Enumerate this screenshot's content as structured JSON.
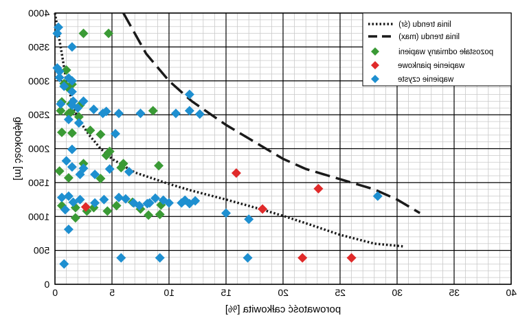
{
  "chart_data": {
    "type": "scatter",
    "xlabel": "porowatość całkowita [%]",
    "ylabel": "głębokość [m]",
    "xlim": [
      0,
      40
    ],
    "ylim": [
      0,
      4000
    ],
    "x_ticks": [
      0,
      5,
      10,
      15,
      20,
      25,
      30,
      35,
      40
    ],
    "y_ticks": [
      0,
      500,
      1000,
      1500,
      2000,
      2500,
      3000,
      3500,
      4000
    ],
    "x_tick_labels": [
      "0",
      "5",
      "10",
      "15",
      "20",
      "25",
      "30",
      "35",
      "40"
    ],
    "y_tick_labels": [
      "0",
      "500",
      "1000",
      "1500",
      "2000",
      "2500",
      "3000",
      "3500",
      "4000"
    ],
    "grid": true,
    "mirrored_horizontally": true,
    "legend_position": "top-right",
    "legend": [
      {
        "label": "linia trendu (śr)",
        "marker": "dotted-line"
      },
      {
        "label": "linia trendu (max)",
        "marker": "dashed-line"
      },
      {
        "label": "pozostałe odmiany wapieni",
        "marker": "diamond",
        "color": "#3a9a35"
      },
      {
        "label": "wapienie piankowe",
        "marker": "diamond",
        "color": "#e02a2a"
      },
      {
        "label": "wapienie czyste",
        "marker": "diamond",
        "color": "#1e8fd0"
      }
    ],
    "series": [
      {
        "name": "linia trendu (śr)",
        "style": "dotted",
        "color": "#1a1a1a",
        "points": [
          [
            0,
            4000
          ],
          [
            0.5,
            3500
          ],
          [
            1,
            3000
          ],
          [
            1.5,
            2700
          ],
          [
            2,
            2450
          ],
          [
            3,
            2200
          ],
          [
            4,
            2000
          ],
          [
            5,
            1850
          ],
          [
            7,
            1650
          ],
          [
            10,
            1480
          ],
          [
            12,
            1380
          ],
          [
            15,
            1250
          ],
          [
            18,
            1110
          ],
          [
            20,
            1010
          ],
          [
            22,
            900
          ],
          [
            25,
            730
          ],
          [
            28,
            600
          ],
          [
            30.5,
            560
          ]
        ]
      },
      {
        "name": "linia trendu (max)",
        "style": "dashed",
        "color": "#1a1a1a",
        "points": [
          [
            6,
            4000
          ],
          [
            7,
            3700
          ],
          [
            8,
            3400
          ],
          [
            10,
            3000
          ],
          [
            12,
            2700
          ],
          [
            15,
            2350
          ],
          [
            18,
            2050
          ],
          [
            20,
            1850
          ],
          [
            22,
            1700
          ],
          [
            24,
            1600
          ],
          [
            26,
            1500
          ],
          [
            28,
            1400
          ],
          [
            30,
            1250
          ],
          [
            32,
            1050
          ]
        ]
      },
      {
        "name": "pozostałe odmiany wapieni",
        "color": "#3a9a35",
        "points": [
          [
            2.5,
            3700
          ],
          [
            4.7,
            3700
          ],
          [
            1.0,
            3160
          ],
          [
            0.8,
            2960
          ],
          [
            1.5,
            2950
          ],
          [
            1.2,
            2890
          ],
          [
            0.6,
            2690
          ],
          [
            1.4,
            2660
          ],
          [
            2.2,
            2640
          ],
          [
            0.5,
            2560
          ],
          [
            1.4,
            2540
          ],
          [
            1.2,
            2520
          ],
          [
            2.1,
            2470
          ],
          [
            3.1,
            2270
          ],
          [
            0.6,
            2240
          ],
          [
            1.5,
            2230
          ],
          [
            4.0,
            2210
          ],
          [
            8.6,
            2560
          ],
          [
            4.8,
            1960
          ],
          [
            4.5,
            1900
          ],
          [
            2.5,
            1780
          ],
          [
            0.4,
            1670
          ],
          [
            6.0,
            1780
          ],
          [
            5.8,
            1720
          ],
          [
            9.1,
            1750
          ],
          [
            1.2,
            1570
          ],
          [
            4.0,
            1560
          ],
          [
            0.6,
            1160
          ],
          [
            1.8,
            1130
          ],
          [
            3.4,
            1130
          ],
          [
            5.4,
            1160
          ],
          [
            6.8,
            1210
          ],
          [
            9.3,
            1170
          ],
          [
            7.5,
            1110
          ],
          [
            2.8,
            1080
          ],
          [
            4.6,
            1080
          ],
          [
            8.2,
            1020
          ],
          [
            9.2,
            1030
          ],
          [
            1.8,
            980
          ]
        ]
      },
      {
        "name": "wapienie piankowe",
        "color": "#e02a2a",
        "points": [
          [
            2.7,
            1140
          ],
          [
            15.9,
            1640
          ],
          [
            18.2,
            1110
          ],
          [
            23.1,
            1410
          ],
          [
            21.7,
            390
          ],
          [
            26.0,
            390
          ]
        ]
      },
      {
        "name": "wapienie czyste",
        "color": "#1e8fd0",
        "points": [
          [
            0.3,
            3790
          ],
          [
            0.2,
            3700
          ],
          [
            1.5,
            3500
          ],
          [
            0.2,
            3190
          ],
          [
            0.4,
            3140
          ],
          [
            0.4,
            3050
          ],
          [
            1.2,
            3040
          ],
          [
            1.5,
            3000
          ],
          [
            0.8,
            2920
          ],
          [
            1.5,
            2840
          ],
          [
            1.6,
            2700
          ],
          [
            2.5,
            2700
          ],
          [
            0.5,
            2660
          ],
          [
            1.5,
            2640
          ],
          [
            2.0,
            2600
          ],
          [
            3.4,
            2580
          ],
          [
            4.2,
            2520
          ],
          [
            4.5,
            2550
          ],
          [
            5.6,
            2520
          ],
          [
            7.5,
            2520
          ],
          [
            10.6,
            2520
          ],
          [
            11.8,
            2560
          ],
          [
            12.7,
            2510
          ],
          [
            11.8,
            2800
          ],
          [
            1.2,
            2430
          ],
          [
            2.1,
            2380
          ],
          [
            5.3,
            2220
          ],
          [
            1.5,
            1990
          ],
          [
            1.0,
            1820
          ],
          [
            1.5,
            1730
          ],
          [
            2.5,
            1710
          ],
          [
            4.8,
            1700
          ],
          [
            2.2,
            1620
          ],
          [
            3.5,
            1620
          ],
          [
            6.5,
            1660
          ],
          [
            0.6,
            1280
          ],
          [
            1.2,
            1300
          ],
          [
            2.2,
            1250
          ],
          [
            4.3,
            1250
          ],
          [
            5.6,
            1280
          ],
          [
            6.2,
            1260
          ],
          [
            6.9,
            1200
          ],
          [
            8.3,
            1200
          ],
          [
            8.8,
            1270
          ],
          [
            9.5,
            1240
          ],
          [
            10.0,
            1200
          ],
          [
            11.4,
            1240
          ],
          [
            12.3,
            1230
          ],
          [
            0.9,
            1100
          ],
          [
            1.6,
            1210
          ],
          [
            3.5,
            1200
          ],
          [
            7.4,
            1160
          ],
          [
            8.1,
            1190
          ],
          [
            11.1,
            1200
          ],
          [
            11.8,
            1190
          ],
          [
            15.0,
            1050
          ],
          [
            17.0,
            960
          ],
          [
            1.2,
            810
          ],
          [
            28.3,
            1300
          ],
          [
            5.8,
            390
          ],
          [
            9.2,
            390
          ],
          [
            16.9,
            390
          ],
          [
            0.8,
            300
          ]
        ]
      }
    ]
  }
}
